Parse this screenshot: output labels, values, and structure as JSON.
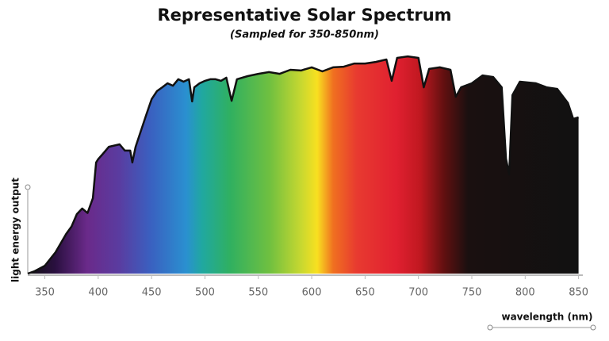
{
  "chart_data": {
    "type": "area",
    "title": "Representative Solar Spectrum",
    "subtitle": "(Sampled for 350-850nm)",
    "xlabel": "wavelength (nm)",
    "ylabel": "light energy output",
    "x": [
      334,
      340,
      350,
      360,
      370,
      375,
      380,
      385,
      390,
      395,
      398,
      400,
      405,
      410,
      420,
      425,
      430,
      432,
      435,
      440,
      445,
      450,
      455,
      460,
      465,
      470,
      475,
      480,
      485,
      488,
      490,
      495,
      500,
      505,
      510,
      515,
      520,
      525,
      530,
      540,
      550,
      560,
      570,
      580,
      590,
      600,
      610,
      620,
      630,
      640,
      650,
      660,
      670,
      675,
      680,
      690,
      700,
      705,
      710,
      720,
      730,
      735,
      740,
      750,
      760,
      770,
      778,
      782,
      785,
      788,
      795,
      810,
      820,
      830,
      840,
      845,
      850
    ],
    "values": [
      0,
      1,
      3.5,
      9.5,
      17.7,
      21,
      26.5,
      29,
      27,
      33.6,
      49.5,
      51,
      53.7,
      56.5,
      57.6,
      54.8,
      54.8,
      49.5,
      56.5,
      63.6,
      70.7,
      77.7,
      81.3,
      83,
      84.8,
      83.7,
      86.6,
      85.5,
      86.6,
      76.7,
      83,
      84.8,
      85.9,
      86.6,
      86.6,
      85.9,
      87.3,
      77,
      86.6,
      88,
      89,
      89.8,
      89,
      90.8,
      90.5,
      91.9,
      90.1,
      91.9,
      92.2,
      93.6,
      93.6,
      94.3,
      95.4,
      85.9,
      96.1,
      96.8,
      96.1,
      83,
      91.2,
      91.9,
      90.8,
      78.8,
      83,
      84.8,
      88.3,
      87.6,
      83,
      51.2,
      44.2,
      79.5,
      85.5,
      84.8,
      83,
      82.3,
      76,
      68.9,
      69.6
    ],
    "line_color": "#111111",
    "xlim": [
      334,
      854
    ],
    "ylim": [
      0,
      100
    ],
    "xticks": [
      350,
      400,
      450,
      500,
      550,
      600,
      650,
      700,
      750,
      800,
      850
    ]
  }
}
